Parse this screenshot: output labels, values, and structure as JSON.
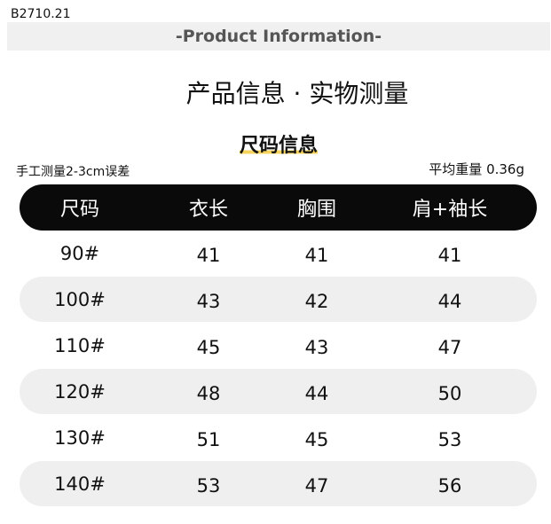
{
  "code": "B2710.21",
  "banner": "-Product  Information-",
  "title": "产品信息 · 实物测量",
  "subtitle": "尺码信息",
  "note_left": "手工测量2-3cm误差",
  "note_right": "平均重量 0.36g",
  "colors": {
    "header_bg": "#0a0a0a",
    "row_alt_bg": "#efefef",
    "banner_bg": "#f0f0f0",
    "highlight": "#f6d45b"
  },
  "table": {
    "headers": [
      "尺码",
      "衣长",
      "胸围",
      "肩+袖长"
    ],
    "rows": [
      [
        "90#",
        "41",
        "41",
        "41"
      ],
      [
        "100#",
        "43",
        "42",
        "44"
      ],
      [
        "110#",
        "45",
        "43",
        "47"
      ],
      [
        "120#",
        "48",
        "44",
        "50"
      ],
      [
        "130#",
        "51",
        "45",
        "53"
      ],
      [
        "140#",
        "53",
        "47",
        "56"
      ]
    ]
  }
}
